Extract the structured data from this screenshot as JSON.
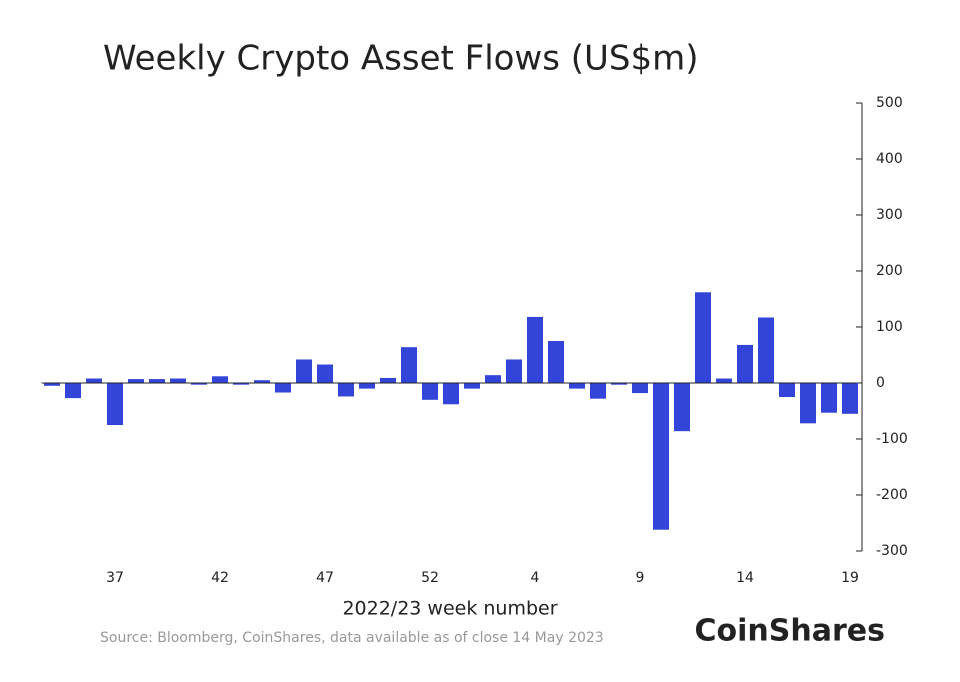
{
  "chart_data": {
    "type": "bar",
    "title": "Weekly Crypto Asset Flows (US$m)",
    "xlabel": "2022/23 week number",
    "source": "Source: Bloomberg, CoinShares, data available as of close 14 May 2023",
    "brand": "CoinShares",
    "categories": [
      null,
      null,
      null,
      "37",
      null,
      null,
      null,
      null,
      "42",
      null,
      null,
      null,
      null,
      "47",
      null,
      null,
      null,
      null,
      "52",
      null,
      null,
      null,
      null,
      "4",
      null,
      null,
      null,
      null,
      "9",
      null,
      null,
      null,
      null,
      "14",
      null,
      null,
      null,
      null,
      "19"
    ],
    "values": [
      -5,
      -27,
      8,
      -75,
      7,
      7,
      8,
      -3,
      12,
      -3,
      5,
      -17,
      42,
      33,
      -24,
      -10,
      9,
      64,
      -30,
      -38,
      -10,
      14,
      42,
      118,
      75,
      -10,
      -28,
      -3,
      -18,
      -262,
      -86,
      162,
      8,
      68,
      117,
      -25,
      -72,
      -53,
      -55
    ],
    "color": "#3344d8",
    "ylim": [
      -300,
      500
    ],
    "yticks": [
      -300,
      -200,
      -100,
      0,
      100,
      200,
      300,
      400,
      500
    ],
    "axis_side": "right"
  }
}
